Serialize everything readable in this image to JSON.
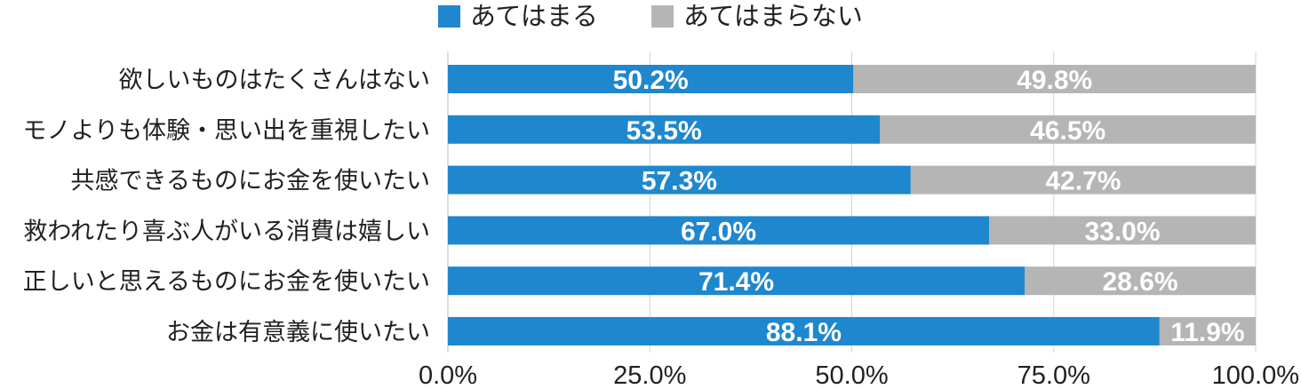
{
  "chart_data": {
    "type": "bar",
    "orientation": "horizontal",
    "stacked": true,
    "categories": [
      "欲しいものはたくさんはない",
      "モノよりも体験・思い出を重視したい",
      "共感できるものにお金を使いたい",
      "救われたり喜ぶ人がいる消費は嬉しい",
      "正しいと思えるものにお金を使いたい",
      "お金は有意義に使いたい"
    ],
    "series": [
      {
        "name": "あてはまる",
        "color": "#1f87cd",
        "values": [
          50.2,
          53.5,
          57.3,
          67.0,
          71.4,
          88.1
        ],
        "labels": [
          "50.2%",
          "53.5%",
          "57.3%",
          "67.0%",
          "71.4%",
          "88.1%"
        ]
      },
      {
        "name": "あてはまらない",
        "color": "#b5b5b5",
        "values": [
          49.8,
          46.5,
          42.7,
          33.0,
          28.6,
          11.9
        ],
        "labels": [
          "49.8%",
          "46.5%",
          "42.7%",
          "33.0%",
          "28.6%",
          "11.9%"
        ]
      }
    ],
    "xlim": [
      0,
      100
    ],
    "xticks": [
      0,
      25,
      50,
      75,
      100
    ],
    "xtick_labels": [
      "0.0%",
      "25.0%",
      "50.0%",
      "75.0%",
      "100.0%"
    ],
    "grid": "vertical",
    "legend_position": "top-center"
  }
}
